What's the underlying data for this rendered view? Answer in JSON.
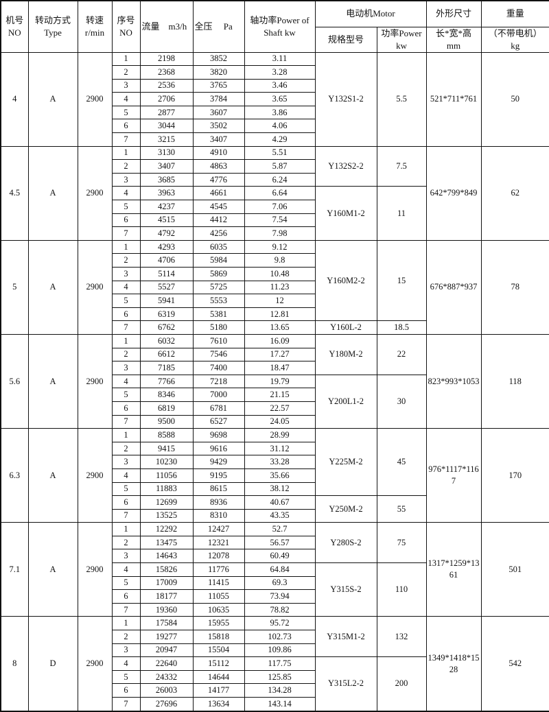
{
  "header": {
    "no": [
      "机号",
      "NO"
    ],
    "type": [
      "转动方式",
      "Type"
    ],
    "speed": [
      "转速",
      "r/min"
    ],
    "seq": [
      "序号",
      "NO"
    ],
    "flow": "流量　m3/h",
    "pressure": "全压　 Pa",
    "shaft_power": [
      "轴功率Power of",
      "Shaft  kw"
    ],
    "motor": "电动机Motor",
    "motor_model": "规格型号",
    "motor_power": [
      "功率Power",
      "kw"
    ],
    "size": [
      "外形尺寸",
      "长*宽*高",
      "mm"
    ],
    "weight": [
      "重量",
      "（不带电机）",
      "kg"
    ]
  },
  "fans": [
    {
      "no": "4",
      "type": "A",
      "speed": "2900",
      "size": "521*711*761",
      "weight": "50",
      "motors": [
        {
          "model": "Y132S1-2",
          "power": "5.5",
          "rows": 7
        }
      ],
      "rows": [
        [
          "1",
          "2198",
          "3852",
          "3.11"
        ],
        [
          "2",
          "2368",
          "3820",
          "3.28"
        ],
        [
          "3",
          "2536",
          "3765",
          "3.46"
        ],
        [
          "4",
          "2706",
          "3784",
          "3.65"
        ],
        [
          "5",
          "2877",
          "3607",
          "3.86"
        ],
        [
          "6",
          "3044",
          "3502",
          "4.06"
        ],
        [
          "7",
          "3215",
          "3407",
          "4.29"
        ]
      ]
    },
    {
      "no": "4.5",
      "type": "A",
      "speed": "2900",
      "size": "642*799*849",
      "weight": "62",
      "motors": [
        {
          "model": "Y132S2-2",
          "power": "7.5",
          "rows": 3
        },
        {
          "model": "Y160M1-2",
          "power": "11",
          "rows": 4
        }
      ],
      "rows": [
        [
          "1",
          "3130",
          "4910",
          "5.51"
        ],
        [
          "2",
          "3407",
          "4863",
          "5.87"
        ],
        [
          "3",
          "3685",
          "4776",
          "6.24"
        ],
        [
          "4",
          "3963",
          "4661",
          "6.64"
        ],
        [
          "5",
          "4237",
          "4545",
          "7.06"
        ],
        [
          "6",
          "4515",
          "4412",
          "7.54"
        ],
        [
          "7",
          "4792",
          "4256",
          "7.98"
        ]
      ]
    },
    {
      "no": "5",
      "type": "A",
      "speed": "2900",
      "size": "676*887*937",
      "weight": "78",
      "motors": [
        {
          "model": "Y160M2-2",
          "power": "15",
          "rows": 6
        },
        {
          "model": "Y160L-2",
          "power": "18.5",
          "rows": 1
        }
      ],
      "rows": [
        [
          "1",
          "4293",
          "6035",
          "9.12"
        ],
        [
          "2",
          "4706",
          "5984",
          "9.8"
        ],
        [
          "3",
          "5114",
          "5869",
          "10.48"
        ],
        [
          "4",
          "5527",
          "5725",
          "11.23"
        ],
        [
          "5",
          "5941",
          "5553",
          "12"
        ],
        [
          "6",
          "6319",
          "5381",
          "12.81"
        ],
        [
          "7",
          "6762",
          "5180",
          "13.65"
        ]
      ]
    },
    {
      "no": "5.6",
      "type": "A",
      "speed": "2900",
      "size": "823*993*1053",
      "weight": "118",
      "motors": [
        {
          "model": "Y180M-2",
          "power": "22",
          "rows": 3
        },
        {
          "model": "Y200L1-2",
          "power": "30",
          "rows": 4
        }
      ],
      "rows": [
        [
          "1",
          "6032",
          "7610",
          "16.09"
        ],
        [
          "2",
          "6612",
          "7546",
          "17.27"
        ],
        [
          "3",
          "7185",
          "7400",
          "18.47"
        ],
        [
          "4",
          "7766",
          "7218",
          "19.79"
        ],
        [
          "5",
          "8346",
          "7000",
          "21.15"
        ],
        [
          "6",
          "6819",
          "6781",
          "22.57"
        ],
        [
          "7",
          "9500",
          "6527",
          "24.05"
        ]
      ]
    },
    {
      "no": "6.3",
      "type": "A",
      "speed": "2900",
      "size": "976*1117*1167",
      "weight": "170",
      "motors": [
        {
          "model": "Y225M-2",
          "power": "45",
          "rows": 5
        },
        {
          "model": "Y250M-2",
          "power": "55",
          "rows": 2
        }
      ],
      "rows": [
        [
          "1",
          "8588",
          "9698",
          "28.99"
        ],
        [
          "2",
          "9415",
          "9616",
          "31.12"
        ],
        [
          "3",
          "10230",
          "9429",
          "33.28"
        ],
        [
          "4",
          "11056",
          "9195",
          "35.66"
        ],
        [
          "5",
          "11883",
          "8615",
          "38.12"
        ],
        [
          "6",
          "12699",
          "8936",
          "40.67"
        ],
        [
          "7",
          "13525",
          "8310",
          "43.35"
        ]
      ]
    },
    {
      "no": "7.1",
      "type": "A",
      "speed": "2900",
      "size": "1317*1259*1361",
      "weight": "501",
      "motors": [
        {
          "model": "Y280S-2",
          "power": "75",
          "rows": 3
        },
        {
          "model": "Y315S-2",
          "power": "110",
          "rows": 4
        }
      ],
      "rows": [
        [
          "1",
          "12292",
          "12427",
          "52.7"
        ],
        [
          "2",
          "13475",
          "12321",
          "56.57"
        ],
        [
          "3",
          "14643",
          "12078",
          "60.49"
        ],
        [
          "4",
          "15826",
          "11776",
          "64.84"
        ],
        [
          "5",
          "17009",
          "11415",
          "69.3"
        ],
        [
          "6",
          "18177",
          "11055",
          "73.94"
        ],
        [
          "7",
          "19360",
          "10635",
          "78.82"
        ]
      ]
    },
    {
      "no": "8",
      "type": "D",
      "speed": "2900",
      "size": "1349*1418*1528",
      "weight": "542",
      "motors": [
        {
          "model": "Y315M1-2",
          "power": "132",
          "rows": 3
        },
        {
          "model": "Y315L2-2",
          "power": "200",
          "rows": 4
        }
      ],
      "rows": [
        [
          "1",
          "17584",
          "15955",
          "95.72"
        ],
        [
          "2",
          "19277",
          "15818",
          "102.73"
        ],
        [
          "3",
          "20947",
          "15504",
          "109.86"
        ],
        [
          "4",
          "22640",
          "15112",
          "117.75"
        ],
        [
          "5",
          "24332",
          "14644",
          "125.85"
        ],
        [
          "6",
          "26003",
          "14177",
          "134.28"
        ],
        [
          "7",
          "27696",
          "13634",
          "143.14"
        ]
      ]
    }
  ]
}
